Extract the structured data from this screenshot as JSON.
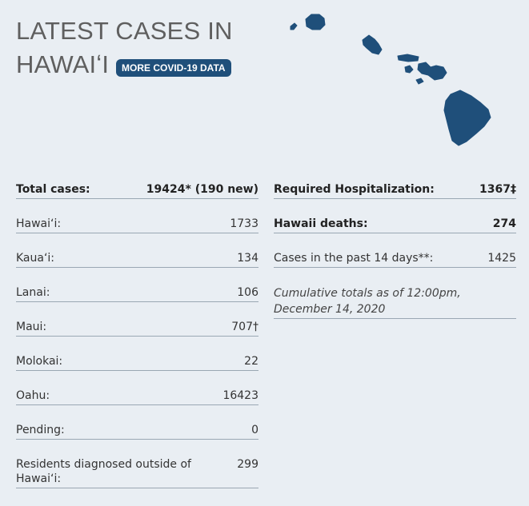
{
  "header": {
    "title_line1": "LATEST CASES IN",
    "title_line2": "HAWAIʻI",
    "more_button_label": "MORE COVID-19 DATA"
  },
  "map": {
    "icon": "hawaii-islands-map",
    "color": "#1f4f7a"
  },
  "left_column": {
    "total": {
      "label": "Total cases:",
      "value": "19424* (190 new)"
    },
    "rows": [
      {
        "label": "Hawaiʻi:",
        "value": "1733"
      },
      {
        "label": "Kauaʻi:",
        "value": "134"
      },
      {
        "label": "Lanai:",
        "value": "106"
      },
      {
        "label": "Maui:",
        "value": "707†"
      },
      {
        "label": "Molokai:",
        "value": "22"
      },
      {
        "label": "Oahu:",
        "value": "16423"
      },
      {
        "label": "Pending:",
        "value": "0"
      },
      {
        "label": "Residents diagnosed outside of Hawaiʻi:",
        "value": "299"
      }
    ]
  },
  "right_column": {
    "hospitalization": {
      "label": "Required Hospitalization:",
      "value": "1367‡"
    },
    "deaths": {
      "label": "Hawaii deaths:",
      "value": "274"
    },
    "past14": {
      "label": "Cases in the past 14 days**:",
      "value": "1425"
    },
    "note_line1": "Cumulative totals as of 12:00pm,",
    "note_line2": "December 14, 2020"
  }
}
